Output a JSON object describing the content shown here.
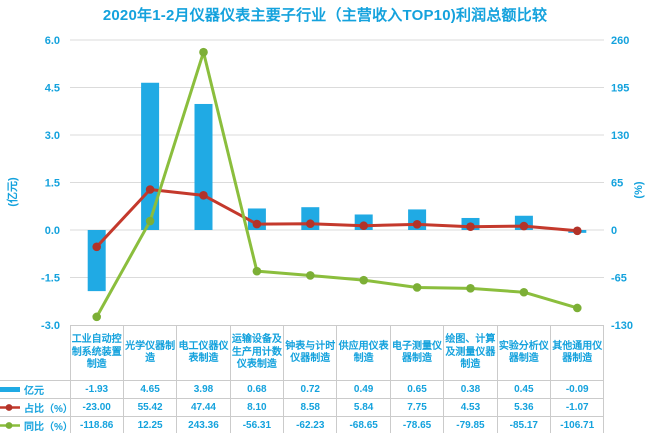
{
  "title": "2020年1-2月仪器仪表主要子行业（主营收入TOP10)利润总额比较",
  "colors": {
    "accent_blue": "#14A2DD",
    "bar_fill": "#20AAE4",
    "line_red": "#C4392C",
    "dot_red": "#B23329",
    "line_green": "#8BBE3D",
    "dot_green": "#7CAF36",
    "gridline": "#DBDBDB",
    "table_border": "#CBCBCB"
  },
  "chart_data": {
    "type": "bar",
    "subtype": "combo-bar-line",
    "title": "2020年1-2月仪器仪表主要子行业（主营收入TOP10)利润总额比较",
    "grid": true,
    "legend_position": "table-left",
    "categories": [
      "工业自动控制系统装置制造",
      "光学仪器制造",
      "电工仪器仪表制造",
      "运输设备及生产用计数仪表制造",
      "钟表与计时仪器制造",
      "供应用仪表制造",
      "电子测量仪器制造",
      "绘图、计算及测量仪器制造",
      "实验分析仪器制造",
      "其他通用仪器制造"
    ],
    "series": [
      {
        "name": "亿元",
        "type": "bar",
        "axis": "left",
        "values": [
          -1.93,
          4.65,
          3.98,
          0.68,
          0.72,
          0.49,
          0.65,
          0.38,
          0.45,
          -0.09
        ]
      },
      {
        "name": "占比（%）",
        "type": "line",
        "axis": "right",
        "values": [
          -23.0,
          55.42,
          47.44,
          8.1,
          8.58,
          5.84,
          7.75,
          4.53,
          5.36,
          -1.07
        ]
      },
      {
        "name": "同比（%）",
        "type": "line",
        "axis": "right",
        "values": [
          -118.86,
          12.25,
          243.36,
          -56.31,
          -62.23,
          -68.65,
          -78.65,
          -79.85,
          -85.17,
          -106.71
        ]
      }
    ],
    "left_axis": {
      "title": "(亿元)",
      "min": -3.0,
      "max": 6.0,
      "step": 1.5,
      "ticks": [
        "6.0",
        "4.5",
        "3.0",
        "1.5",
        "0.0",
        "-1.5",
        "-3.0"
      ]
    },
    "right_axis": {
      "title": "(%)",
      "min": -130,
      "max": 260,
      "step": 65,
      "ticks": [
        "260",
        "195",
        "130",
        "65",
        "0",
        "-65",
        "-130"
      ]
    }
  },
  "table": {
    "row_labels": [
      "亿元",
      "占比（%）",
      "同比（%）"
    ],
    "rows": [
      [
        "-1.93",
        "4.65",
        "3.98",
        "0.68",
        "0.72",
        "0.49",
        "0.65",
        "0.38",
        "0.45",
        "-0.09"
      ],
      [
        "-23.00",
        "55.42",
        "47.44",
        "8.10",
        "8.58",
        "5.84",
        "7.75",
        "4.53",
        "5.36",
        "-1.07"
      ],
      [
        "-118.86",
        "12.25",
        "243.36",
        "-56.31",
        "-62.23",
        "-68.65",
        "-78.65",
        "-79.85",
        "-85.17",
        "-106.71"
      ]
    ]
  }
}
